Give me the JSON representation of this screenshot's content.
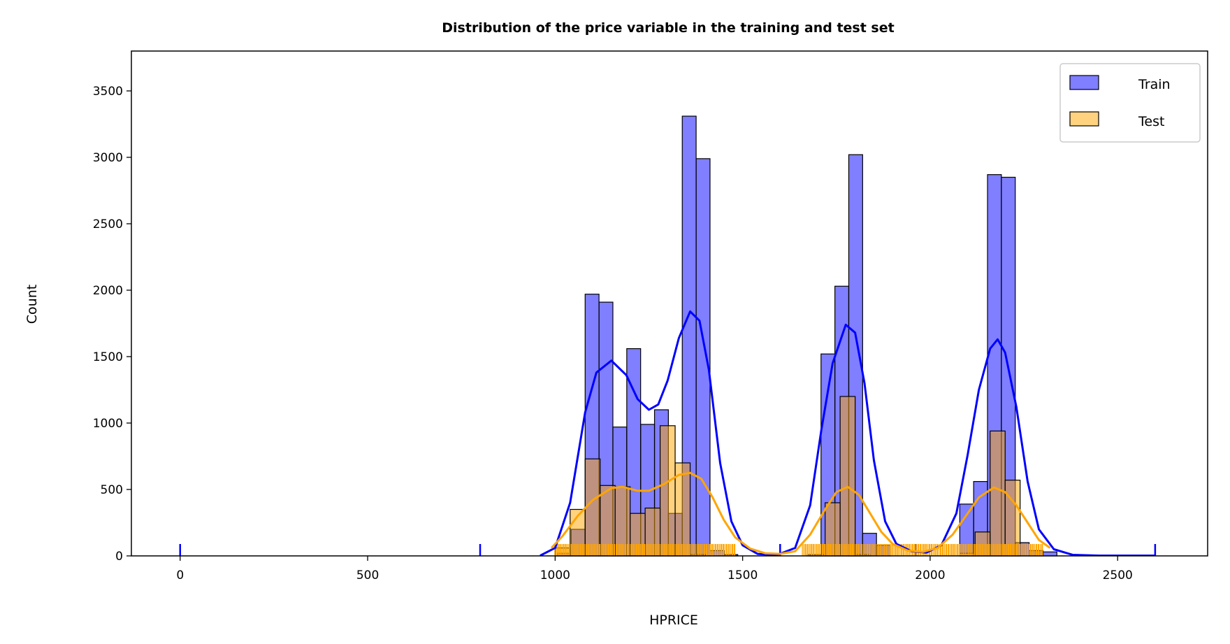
{
  "chart_data": {
    "type": "bar",
    "title": "Distribution of the price variable in the training and test set",
    "xlabel": "HPRICE",
    "ylabel": "Count",
    "xlim": [
      -130,
      2740
    ],
    "ylim": [
      0,
      3800
    ],
    "xticks": [
      0,
      500,
      1000,
      1500,
      2000,
      2500
    ],
    "yticks": [
      0,
      500,
      1000,
      1500,
      2000,
      2500,
      3000,
      3500
    ],
    "grid": false,
    "legend_position": "upper-right",
    "series": [
      {
        "name": "Train",
        "color": "#0000ff",
        "fill_opacity": 0.5,
        "bin_width": 37,
        "bins": [
          {
            "x0": 1006,
            "count": 20
          },
          {
            "x0": 1043,
            "count": 200
          },
          {
            "x0": 1080,
            "count": 1970
          },
          {
            "x0": 1117,
            "count": 1910
          },
          {
            "x0": 1154,
            "count": 970
          },
          {
            "x0": 1191,
            "count": 1560
          },
          {
            "x0": 1228,
            "count": 990
          },
          {
            "x0": 1265,
            "count": 1100
          },
          {
            "x0": 1302,
            "count": 320
          },
          {
            "x0": 1339,
            "count": 3310
          },
          {
            "x0": 1376,
            "count": 2990
          },
          {
            "x0": 1413,
            "count": 40
          },
          {
            "x0": 1450,
            "count": 10
          },
          {
            "x0": 1672,
            "count": 10
          },
          {
            "x0": 1709,
            "count": 1520
          },
          {
            "x0": 1746,
            "count": 2030
          },
          {
            "x0": 1783,
            "count": 3020
          },
          {
            "x0": 1820,
            "count": 170
          },
          {
            "x0": 1857,
            "count": 80
          },
          {
            "x0": 2079,
            "count": 390
          },
          {
            "x0": 2116,
            "count": 560
          },
          {
            "x0": 2153,
            "count": 2870
          },
          {
            "x0": 2190,
            "count": 2850
          },
          {
            "x0": 2227,
            "count": 100
          },
          {
            "x0": 2264,
            "count": 40
          },
          {
            "x0": 2301,
            "count": 30
          }
        ],
        "kde": [
          [
            960,
            2
          ],
          [
            1000,
            60
          ],
          [
            1040,
            400
          ],
          [
            1080,
            1080
          ],
          [
            1110,
            1380
          ],
          [
            1150,
            1470
          ],
          [
            1190,
            1360
          ],
          [
            1220,
            1180
          ],
          [
            1250,
            1100
          ],
          [
            1275,
            1140
          ],
          [
            1300,
            1320
          ],
          [
            1330,
            1640
          ],
          [
            1360,
            1840
          ],
          [
            1385,
            1770
          ],
          [
            1410,
            1400
          ],
          [
            1440,
            700
          ],
          [
            1470,
            260
          ],
          [
            1500,
            80
          ],
          [
            1540,
            15
          ],
          [
            1590,
            5
          ],
          [
            1640,
            60
          ],
          [
            1680,
            380
          ],
          [
            1710,
            950
          ],
          [
            1740,
            1450
          ],
          [
            1775,
            1740
          ],
          [
            1800,
            1680
          ],
          [
            1825,
            1300
          ],
          [
            1850,
            720
          ],
          [
            1880,
            260
          ],
          [
            1910,
            90
          ],
          [
            1950,
            35
          ],
          [
            1990,
            25
          ],
          [
            2030,
            80
          ],
          [
            2070,
            320
          ],
          [
            2100,
            760
          ],
          [
            2130,
            1250
          ],
          [
            2160,
            1560
          ],
          [
            2180,
            1630
          ],
          [
            2200,
            1530
          ],
          [
            2230,
            1120
          ],
          [
            2260,
            560
          ],
          [
            2290,
            200
          ],
          [
            2330,
            50
          ],
          [
            2380,
            8
          ],
          [
            2450,
            2
          ],
          [
            2600,
            2
          ]
        ],
        "rug": [
          0,
          800,
          1600,
          1960,
          2600
        ]
      },
      {
        "name": "Test",
        "color": "#ffa500",
        "fill_opacity": 0.5,
        "bin_width": 40,
        "bins": [
          {
            "x0": 1000,
            "count": 60
          },
          {
            "x0": 1040,
            "count": 350
          },
          {
            "x0": 1080,
            "count": 730
          },
          {
            "x0": 1120,
            "count": 530
          },
          {
            "x0": 1160,
            "count": 520
          },
          {
            "x0": 1200,
            "count": 320
          },
          {
            "x0": 1240,
            "count": 360
          },
          {
            "x0": 1280,
            "count": 980
          },
          {
            "x0": 1320,
            "count": 700
          },
          {
            "x0": 1360,
            "count": 10
          },
          {
            "x0": 1680,
            "count": 10
          },
          {
            "x0": 1720,
            "count": 400
          },
          {
            "x0": 1760,
            "count": 1200
          },
          {
            "x0": 1800,
            "count": 10
          },
          {
            "x0": 2080,
            "count": 20
          },
          {
            "x0": 2120,
            "count": 180
          },
          {
            "x0": 2160,
            "count": 940
          },
          {
            "x0": 2200,
            "count": 570
          }
        ],
        "kde": [
          [
            990,
            60
          ],
          [
            1020,
            150
          ],
          [
            1060,
            300
          ],
          [
            1100,
            420
          ],
          [
            1150,
            510
          ],
          [
            1180,
            520
          ],
          [
            1220,
            490
          ],
          [
            1250,
            490
          ],
          [
            1290,
            540
          ],
          [
            1330,
            610
          ],
          [
            1360,
            625
          ],
          [
            1390,
            580
          ],
          [
            1420,
            440
          ],
          [
            1450,
            270
          ],
          [
            1480,
            140
          ],
          [
            1520,
            55
          ],
          [
            1560,
            20
          ],
          [
            1600,
            15
          ],
          [
            1640,
            35
          ],
          [
            1680,
            160
          ],
          [
            1720,
            350
          ],
          [
            1750,
            480
          ],
          [
            1780,
            520
          ],
          [
            1810,
            460
          ],
          [
            1840,
            320
          ],
          [
            1870,
            180
          ],
          [
            1900,
            90
          ],
          [
            1940,
            40
          ],
          [
            1980,
            30
          ],
          [
            2020,
            60
          ],
          [
            2060,
            160
          ],
          [
            2100,
            320
          ],
          [
            2130,
            440
          ],
          [
            2170,
            515
          ],
          [
            2200,
            480
          ],
          [
            2230,
            380
          ],
          [
            2260,
            250
          ],
          [
            2290,
            120
          ],
          [
            2320,
            60
          ]
        ],
        "rug_ranges": [
          [
            1000,
            1480
          ],
          [
            1660,
            2300
          ]
        ]
      }
    ]
  }
}
